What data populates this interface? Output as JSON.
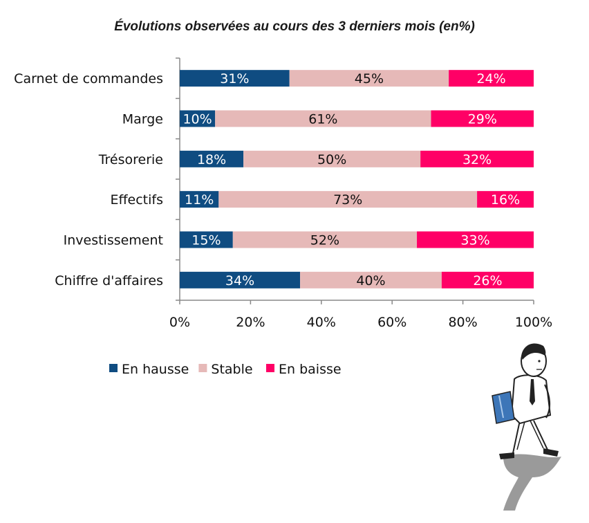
{
  "chart_data": {
    "type": "bar",
    "orientation": "horizontal",
    "stacked": "percent",
    "title": "Évolutions observées au cours des 3 derniers mois (en%)",
    "categories": [
      "Carnet de commandes",
      "Marge",
      "Trésorerie",
      "Effectifs",
      "Investissement",
      "Chiffre d'affaires"
    ],
    "series": [
      {
        "name": "En hausse",
        "values": [
          31,
          10,
          18,
          11,
          15,
          34
        ],
        "color": "#0f4c81",
        "label_color": "#ffffff"
      },
      {
        "name": "Stable",
        "values": [
          45,
          61,
          50,
          73,
          52,
          40
        ],
        "color": "#e6b9b8",
        "label_color": "#111111"
      },
      {
        "name": "En baisse",
        "values": [
          24,
          29,
          32,
          16,
          33,
          26
        ],
        "color": "#ff0066",
        "label_color": "#ffffff"
      }
    ],
    "xlim": [
      0,
      100
    ],
    "xticks": [
      "0%",
      "20%",
      "40%",
      "60%",
      "80%",
      "100%"
    ],
    "legend_position": "bottom-left",
    "grid": false
  },
  "illustration": {
    "icon": "walking-businessman-icon"
  }
}
